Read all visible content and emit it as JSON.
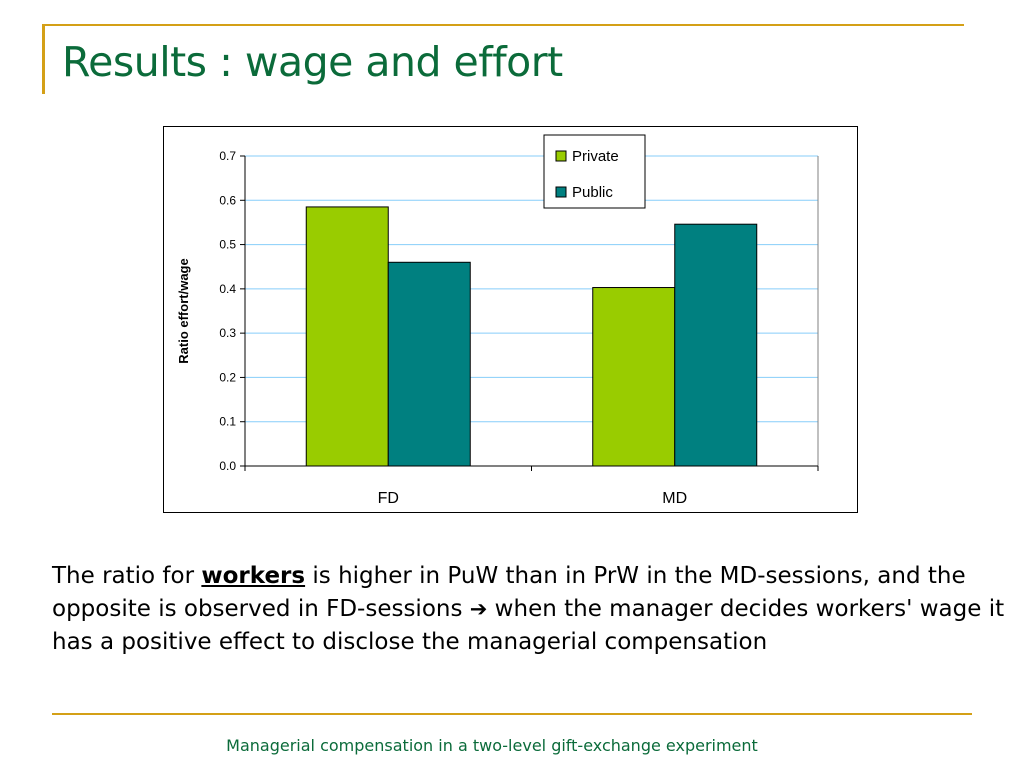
{
  "slide": {
    "title": "Results : wage and effort",
    "footer": "Managerial compensation in a two-level gift-exchange experiment"
  },
  "body": {
    "text_before": "The ratio for ",
    "emphasis": "workers",
    "text_mid": " is higher in PuW than in PrW in the MD-sessions, and the opposite is observed in FD-sessions ",
    "arrow": "➔",
    "text_after": " when the manager decides workers' wage it has a positive effect to disclose the managerial compensation"
  },
  "colors": {
    "title": "#0b6b3a",
    "rule": "#d4a017",
    "private": "#99cc00",
    "public": "#008080",
    "grid": "#87cefa"
  },
  "chart_data": {
    "type": "bar",
    "categories": [
      "FD",
      "MD"
    ],
    "series": [
      {
        "name": "Private",
        "values": [
          0.585,
          0.403
        ],
        "color": "#99cc00"
      },
      {
        "name": "Public",
        "values": [
          0.46,
          0.546
        ],
        "color": "#008080"
      }
    ],
    "ylabel": "Ratio effort/wage",
    "xlabel": "",
    "ylim": [
      0,
      0.7
    ],
    "yticks": [
      "0.0",
      "0.1",
      "0.2",
      "0.3",
      "0.4",
      "0.5",
      "0.6",
      "0.7"
    ],
    "grid": true,
    "legend_position": "top-right"
  }
}
